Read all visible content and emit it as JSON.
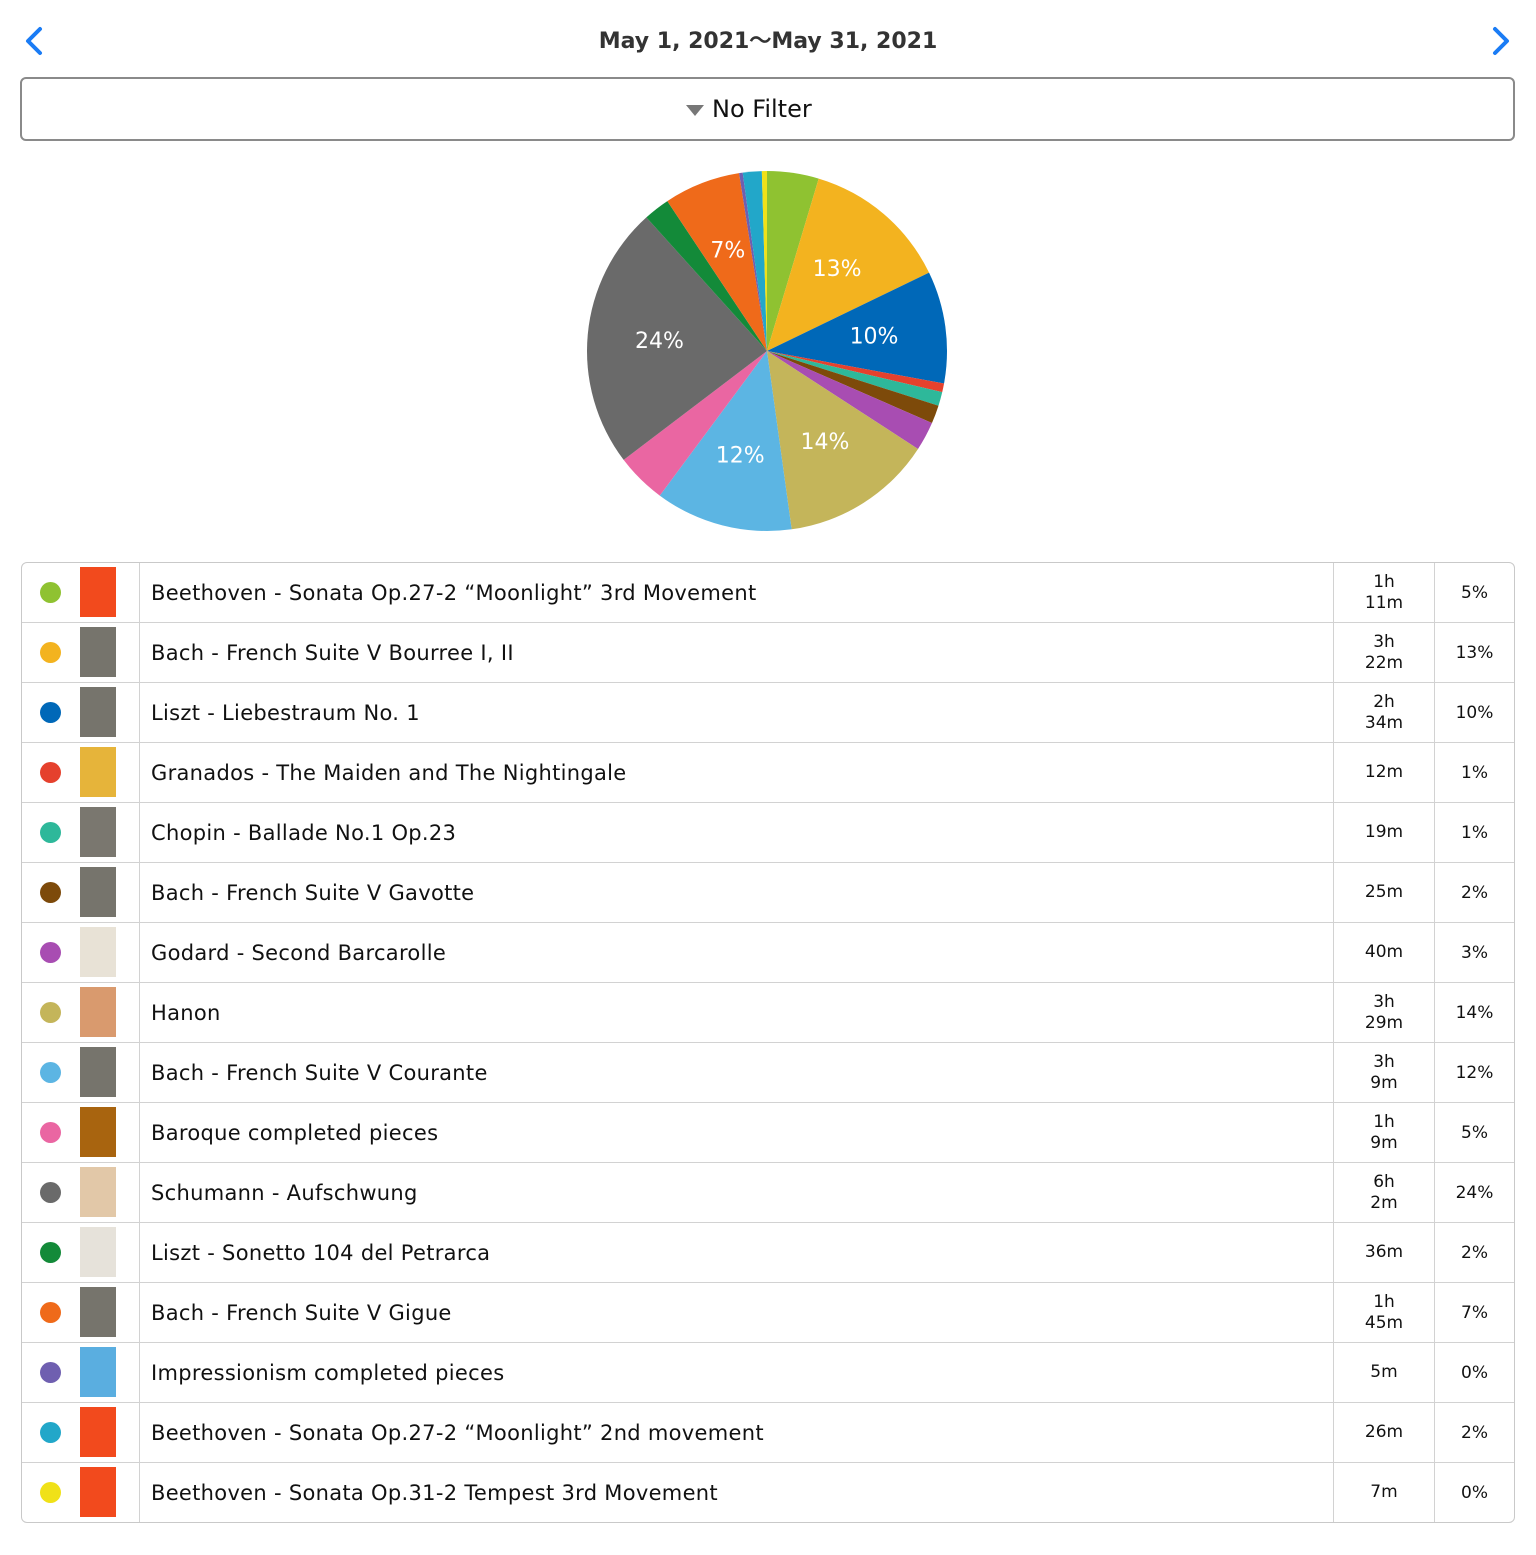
{
  "header": {
    "title": "May 1, 2021〜May 31, 2021",
    "filter": "No Filter"
  },
  "chart_data": {
    "type": "pie",
    "categories": [
      "Beethoven - Sonata Op.27-2 “Moonlight” 3rd Movement",
      "Bach - French Suite V Bourree I, II",
      "Liszt - Liebestraum No. 1",
      "Granados - The Maiden and The Nightingale",
      "Chopin - Ballade No.1 Op.23",
      "Bach - French Suite V Gavotte",
      "Godard - Second Barcarolle",
      "Hanon",
      "Bach - French Suite V Courante",
      "Baroque completed pieces",
      "Schumann - Aufschwung",
      "Liszt - Sonetto 104 del Petrarca",
      "Bach - French Suite V Gigue",
      "Impressionism completed pieces",
      "Beethoven - Sonata Op.27-2 “Moonlight” 2nd movement",
      "Beethoven - Sonata Op.31-2 Tempest 3rd Movement"
    ],
    "values": [
      71,
      202,
      154,
      12,
      19,
      25,
      40,
      209,
      189,
      69,
      362,
      36,
      105,
      5,
      26,
      7
    ],
    "value_labels": [
      "1h\n11m",
      "3h\n22m",
      "2h\n34m",
      "12m",
      "19m",
      "25m",
      "40m",
      "3h\n29m",
      "3h\n9m",
      "1h\n9m",
      "6h\n2m",
      "36m",
      "1h\n45m",
      "5m",
      "26m",
      "7m"
    ],
    "percent_labels": [
      "5%",
      "13%",
      "10%",
      "1%",
      "1%",
      "2%",
      "3%",
      "14%",
      "12%",
      "5%",
      "24%",
      "2%",
      "7%",
      "0%",
      "2%",
      "0%"
    ],
    "colors": [
      "#8fc231",
      "#f3b31f",
      "#0068b8",
      "#e5412d",
      "#2eb89a",
      "#7d4a0a",
      "#a84db2",
      "#c4b55a",
      "#5cb5e3",
      "#ea66a2",
      "#6a6a6a",
      "#138a39",
      "#ef6a1a",
      "#6f5fb0",
      "#22a7c9",
      "#f0e118"
    ]
  }
}
